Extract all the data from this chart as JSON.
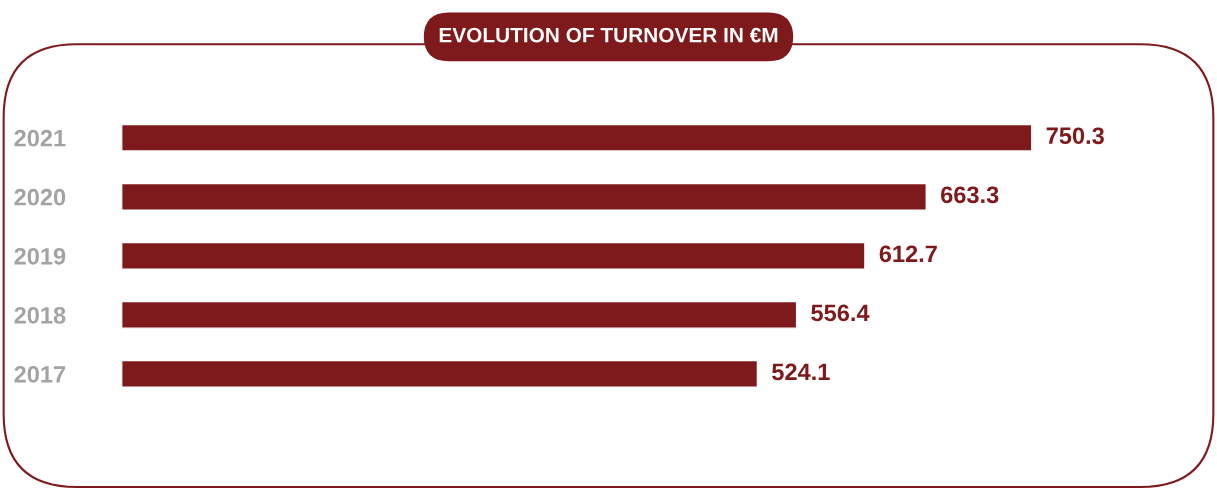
{
  "chart_data": {
    "type": "bar",
    "orientation": "horizontal",
    "title": "EVOLUTION OF TURNOVER IN €M",
    "categories": [
      "2021",
      "2020",
      "2019",
      "2018",
      "2017"
    ],
    "values": [
      750.3,
      663.3,
      612.7,
      556.4,
      524.1
    ],
    "color": "#7f1a1c",
    "data_labels": true,
    "tick_labels": "y",
    "grid": false
  }
}
